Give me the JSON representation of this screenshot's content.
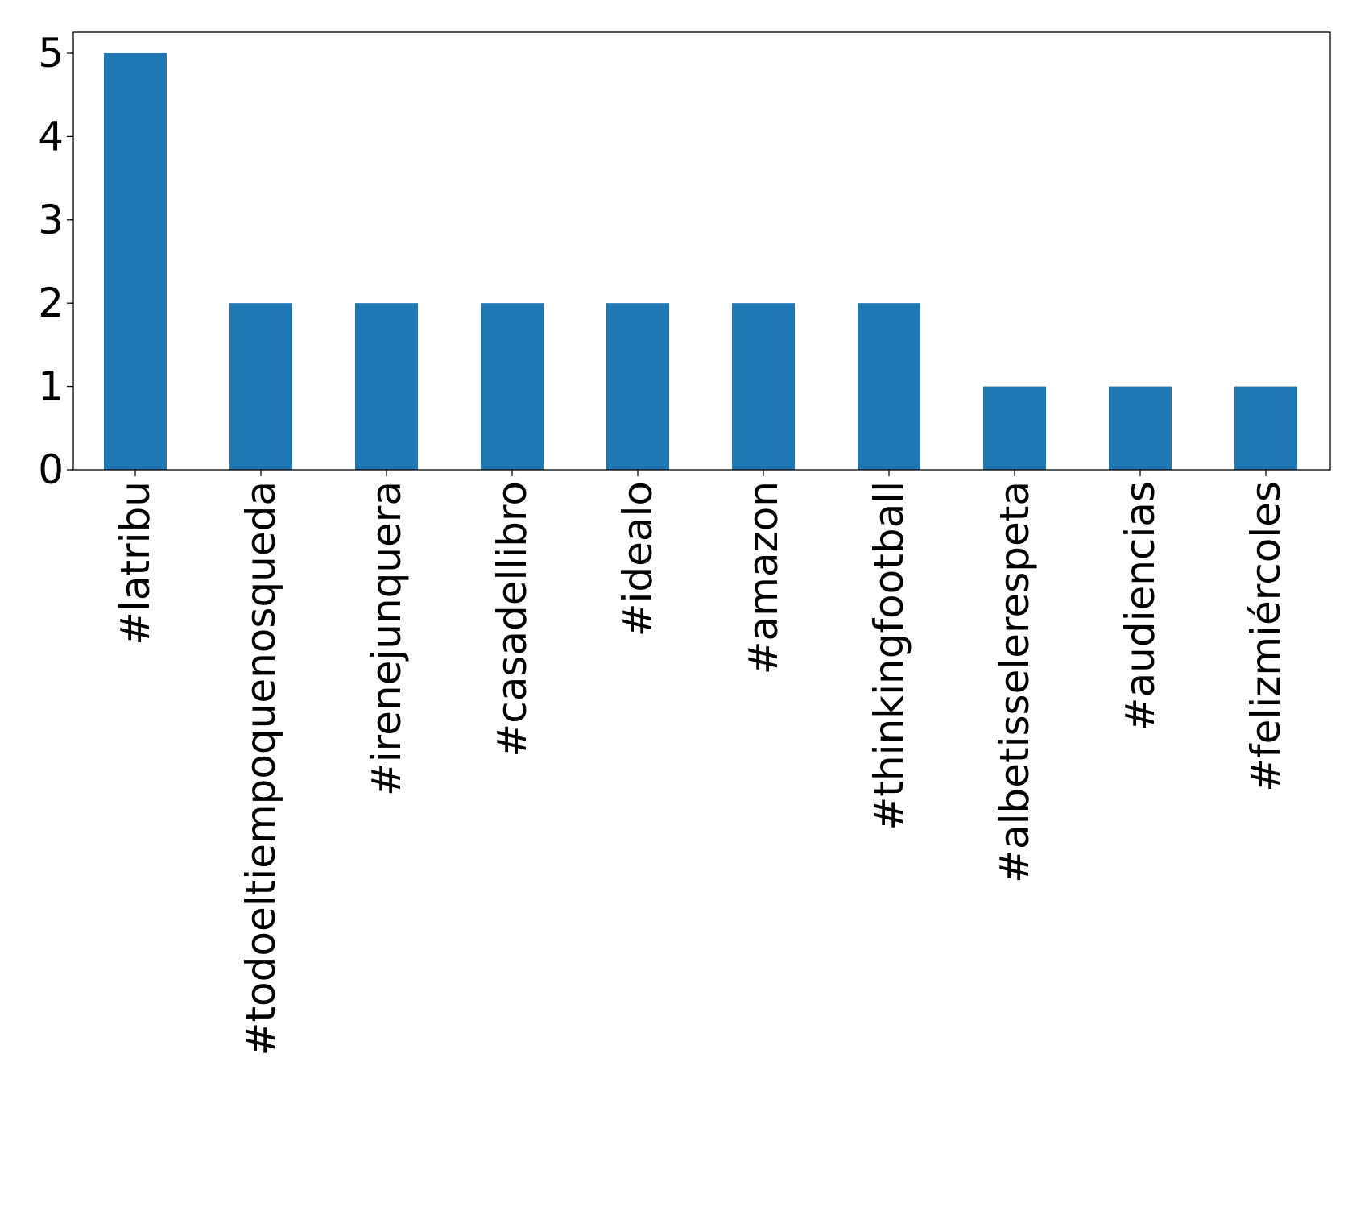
{
  "chart_data": {
    "type": "bar",
    "title": "",
    "xlabel": "",
    "ylabel": "",
    "categories": [
      "#latribu",
      "#todoeltiempoquenosqueda",
      "#irenejunquera",
      "#casadellibro",
      "#idealo",
      "#amazon",
      "#thinkingfootball",
      "#albetisselerespeta",
      "#audiencias",
      "#felizmiércoles"
    ],
    "values": [
      5,
      2,
      2,
      2,
      2,
      2,
      2,
      1,
      1,
      1
    ],
    "ylim": [
      0,
      5.25
    ],
    "yticks": [
      0,
      1,
      2,
      3,
      4,
      5
    ],
    "grid": false,
    "legend": "none",
    "bar_color": "#1f77b4"
  }
}
